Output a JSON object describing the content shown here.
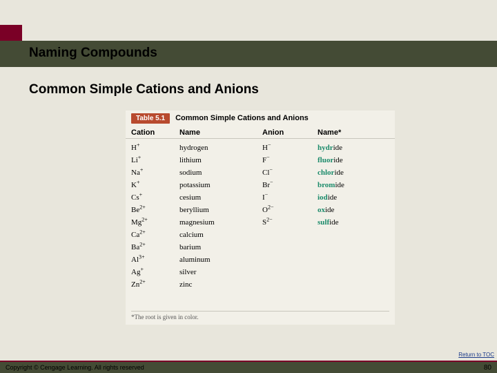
{
  "header": {
    "title": "Naming Compounds",
    "subtitle": "Common Simple Cations and Anions"
  },
  "table": {
    "badge": "Table 5.1",
    "title": "Common Simple Cations and Anions",
    "columns": [
      "Cation",
      "Name",
      "Anion",
      "Name*"
    ],
    "rows": [
      {
        "cation_sym": "H",
        "cation_chg": "+",
        "cation_name": "hydrogen",
        "anion_sym": "H",
        "anion_chg": "−",
        "root": "hydr",
        "suffix": "ide"
      },
      {
        "cation_sym": "Li",
        "cation_chg": "+",
        "cation_name": "lithium",
        "anion_sym": "F",
        "anion_chg": "−",
        "root": "fluor",
        "suffix": "ide"
      },
      {
        "cation_sym": "Na",
        "cation_chg": "+",
        "cation_name": "sodium",
        "anion_sym": "Cl",
        "anion_chg": "−",
        "root": "chlor",
        "suffix": "ide"
      },
      {
        "cation_sym": "K",
        "cation_chg": "+",
        "cation_name": "potassium",
        "anion_sym": "Br",
        "anion_chg": "−",
        "root": "brom",
        "suffix": "ide"
      },
      {
        "cation_sym": "Cs",
        "cation_chg": "+",
        "cation_name": "cesium",
        "anion_sym": "I",
        "anion_chg": "−",
        "root": "iod",
        "suffix": "ide"
      },
      {
        "cation_sym": "Be",
        "cation_chg": "2+",
        "cation_name": "beryllium",
        "anion_sym": "O",
        "anion_chg": "2−",
        "root": "ox",
        "suffix": "ide"
      },
      {
        "cation_sym": "Mg",
        "cation_chg": "2+",
        "cation_name": "magnesium",
        "anion_sym": "S",
        "anion_chg": "2−",
        "root": "sulf",
        "suffix": "ide"
      },
      {
        "cation_sym": "Ca",
        "cation_chg": "2+",
        "cation_name": "calcium",
        "anion_sym": "",
        "anion_chg": "",
        "root": "",
        "suffix": ""
      },
      {
        "cation_sym": "Ba",
        "cation_chg": "2+",
        "cation_name": "barium",
        "anion_sym": "",
        "anion_chg": "",
        "root": "",
        "suffix": ""
      },
      {
        "cation_sym": "Al",
        "cation_chg": "3+",
        "cation_name": "aluminum",
        "anion_sym": "",
        "anion_chg": "",
        "root": "",
        "suffix": ""
      },
      {
        "cation_sym": "Ag",
        "cation_chg": "+",
        "cation_name": "silver",
        "anion_sym": "",
        "anion_chg": "",
        "root": "",
        "suffix": ""
      },
      {
        "cation_sym": "Zn",
        "cation_chg": "2+",
        "cation_name": "zinc",
        "anion_sym": "",
        "anion_chg": "",
        "root": "",
        "suffix": ""
      }
    ],
    "footnote": "*The root is given in color."
  },
  "footer": {
    "return_link": "Return to TOC",
    "copyright": "Copyright © Cengage Learning. All rights reserved",
    "page": "80"
  },
  "colors": {
    "accent_red": "#7a0026",
    "bar_olive": "#444b35",
    "root_green": "#1a8a6a",
    "badge_orange": "#b84a2e",
    "bg": "#e8e6dc",
    "table_bg": "#f2f0e8"
  }
}
